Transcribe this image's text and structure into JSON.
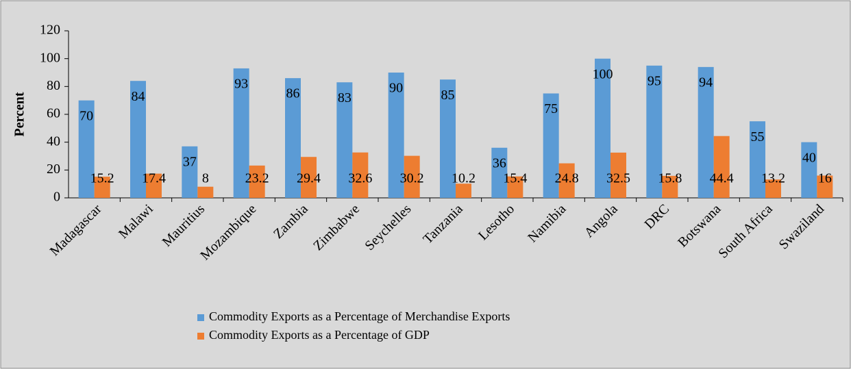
{
  "chart_data": {
    "type": "bar",
    "y_label": "Percent",
    "categories": [
      "Madagascar",
      "Malawi",
      "Mauritius",
      "Mozambique",
      "Zambia",
      "Zimbabwe",
      "Seychelles",
      "Tanzania",
      "Lesotho",
      "Namibia",
      "Angola",
      "DRC",
      "Botswana",
      "South Africa",
      "Swaziland"
    ],
    "series": [
      {
        "name": "Commodity Exports as a Percentage of Merchandise Exports",
        "color": "#5b9bd5",
        "values": [
          70,
          84,
          37,
          93,
          86,
          83,
          90,
          85,
          36,
          75,
          100,
          95,
          94,
          55,
          40
        ]
      },
      {
        "name": "Commodity Exports as a Percentage of GDP",
        "color": "#ed7d31",
        "values": [
          15.2,
          17.4,
          8,
          23.2,
          29.4,
          32.6,
          30.2,
          10.2,
          15.4,
          24.8,
          32.5,
          15.8,
          44.4,
          13.2,
          16
        ]
      }
    ],
    "ylim": [
      0,
      120
    ],
    "yticks": [
      0,
      20,
      40,
      60,
      80,
      100,
      120
    ],
    "grid": false,
    "legend": "bottom"
  }
}
